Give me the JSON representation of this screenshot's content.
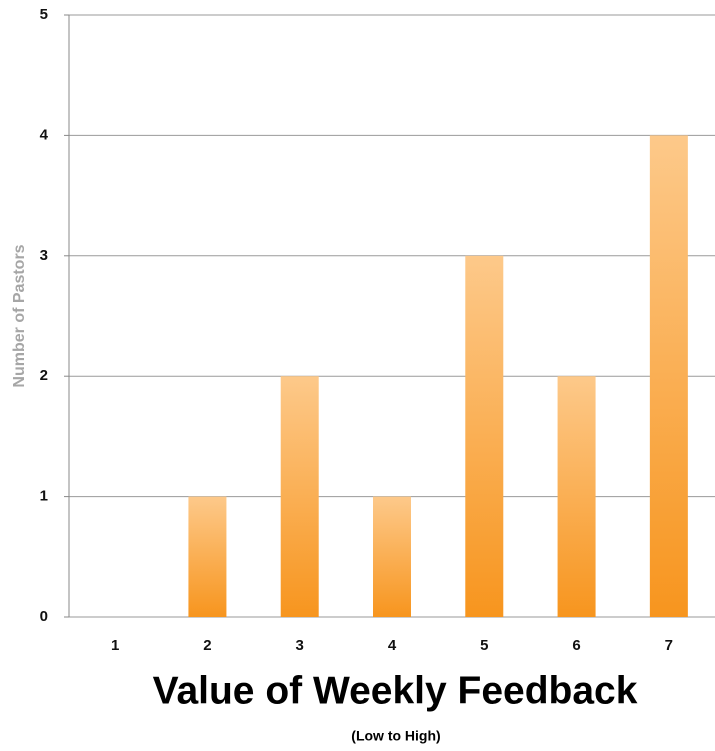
{
  "chart_data": {
    "type": "bar",
    "x_label": "Value of Weekly Feedback",
    "x_sublabel": "(Low to High)",
    "y_label": "Number of Pastors",
    "categories": [
      "1",
      "2",
      "3",
      "4",
      "5",
      "6",
      "7"
    ],
    "values": [
      0,
      1,
      2,
      1,
      3,
      2,
      4
    ],
    "color": "#f7951e",
    "ylim": [
      0,
      5
    ],
    "yticks": [
      0,
      1,
      2,
      3,
      4,
      5
    ],
    "grid": true
  }
}
